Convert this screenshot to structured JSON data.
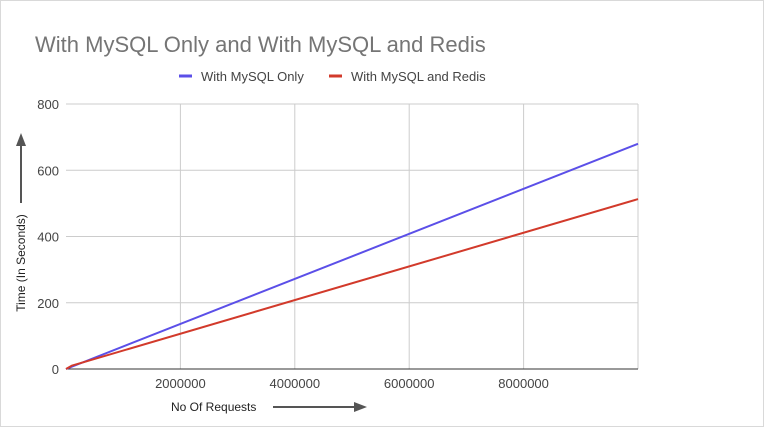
{
  "chart_data": {
    "type": "line",
    "title": "With MySQL Only and With MySQL and Redis",
    "xlabel": "No Of Requests",
    "ylabel": "Time (In Seconds)",
    "xlim": [
      0,
      10000000
    ],
    "ylim": [
      0,
      800
    ],
    "x_ticks": [
      2000000,
      4000000,
      6000000,
      8000000
    ],
    "x_tick_labels": [
      "2000000",
      "4000000",
      "6000000",
      "8000000"
    ],
    "y_ticks": [
      0,
      200,
      400,
      600,
      800
    ],
    "y_tick_labels": [
      "0",
      "200",
      "400",
      "600",
      "800"
    ],
    "grid": true,
    "legend_position": "top",
    "x": [
      0,
      10000000
    ],
    "series": [
      {
        "name": "With MySQL Only",
        "color": "#5b4fe8",
        "x": [
          0,
          10000000
        ],
        "values": [
          0,
          680
        ]
      },
      {
        "name": "With MySQL and Redis",
        "color": "#d23a2b",
        "x": [
          0,
          100000,
          10000000
        ],
        "values": [
          0,
          10,
          513
        ]
      }
    ]
  }
}
